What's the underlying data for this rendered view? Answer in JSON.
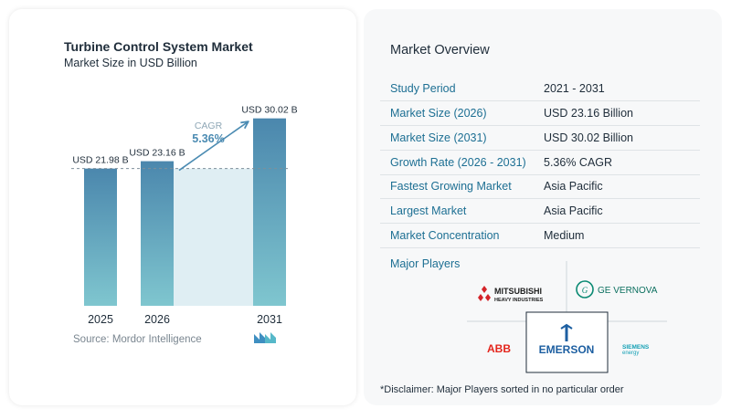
{
  "chart_data": {
    "type": "bar",
    "title": "Turbine Control System Market",
    "subtitle": "Market Size in USD Billion",
    "categories": [
      "2025",
      "2026",
      "2031"
    ],
    "values": [
      21.98,
      23.16,
      30.02
    ],
    "value_labels": [
      "USD 21.98 B",
      "USD 23.16 B",
      "USD 30.02 B"
    ],
    "cagr_label": "CAGR",
    "cagr_value": "5.36%",
    "colors": {
      "bar_top": "#4b87ad",
      "bar_bottom": "#7fc6cf",
      "shade": "#dfeef3",
      "dashed": "#7e8f9b",
      "arrow": "#4b8bb2",
      "cagr": "#4b8bb2"
    },
    "grid": false
  },
  "source": "Source:  Mordor Intelligence",
  "overview": {
    "title": "Market Overview",
    "rows": [
      {
        "label": "Study Period",
        "value": "2021 - 2031"
      },
      {
        "label": "Market Size (2026)",
        "value": "USD 23.16 Billion"
      },
      {
        "label": "Market Size (2031)",
        "value": "USD 30.02 Billion"
      },
      {
        "label": "Growth Rate (2026 - 2031)",
        "value": "5.36% CAGR"
      },
      {
        "label": "Fastest Growing Market",
        "value": "Asia Pacific"
      },
      {
        "label": "Largest Market",
        "value": "Asia Pacific"
      },
      {
        "label": "Market Concentration",
        "value": "Medium"
      }
    ]
  },
  "major_players": {
    "title": "Major Players",
    "mitsubishi_line1": "MITSUBISHI",
    "mitsubishi_line2": "HEAVY INDUSTRIES",
    "ge_name": "GE VERNOVA",
    "abb_name": "ABB",
    "emerson_name": "EMERSON",
    "siemens_line1": "SIEMENS",
    "siemens_line2": "energy"
  },
  "disclaimer": "*Disclaimer: Major Players sorted in no particular order"
}
